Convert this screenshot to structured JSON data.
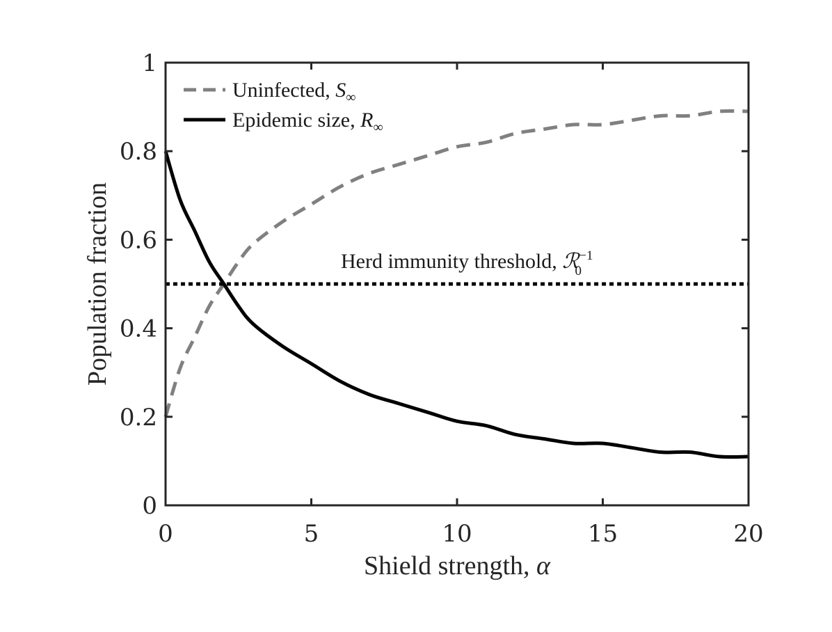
{
  "chart_data": {
    "type": "line",
    "xlabel": "Shield strength, ",
    "xlabel_symbol": "α",
    "ylabel": "Population fraction",
    "xlim": [
      0,
      20
    ],
    "ylim": [
      0,
      1
    ],
    "xticks": [
      "0",
      "5",
      "10",
      "15",
      "20"
    ],
    "xtick_values": [
      0,
      5,
      10,
      15,
      20
    ],
    "yticks": [
      "0",
      "0.2",
      "0.4",
      "0.6",
      "0.8",
      "1"
    ],
    "ytick_values": [
      0,
      0.2,
      0.4,
      0.6,
      0.8,
      1
    ],
    "grid": false,
    "legend_position": "top-left",
    "series": [
      {
        "name": "Uninfected, ",
        "name_symbol": "S",
        "name_subscript": "∞",
        "color": "#808080",
        "style": "dashed",
        "x": [
          0,
          0.5,
          1,
          1.5,
          2,
          2.5,
          3,
          4,
          5,
          6,
          7,
          8,
          9,
          10,
          11,
          12,
          13,
          14,
          15,
          16,
          17,
          18,
          19,
          20
        ],
        "values": [
          0.2,
          0.31,
          0.38,
          0.45,
          0.5,
          0.55,
          0.59,
          0.64,
          0.68,
          0.72,
          0.75,
          0.77,
          0.79,
          0.81,
          0.82,
          0.84,
          0.85,
          0.86,
          0.86,
          0.87,
          0.88,
          0.88,
          0.89,
          0.89
        ]
      },
      {
        "name": "Epidemic size, ",
        "name_symbol": "R",
        "name_subscript": "∞",
        "color": "#000000",
        "style": "solid",
        "x": [
          0,
          0.5,
          1,
          1.5,
          2,
          2.5,
          3,
          4,
          5,
          6,
          7,
          8,
          9,
          10,
          11,
          12,
          13,
          14,
          15,
          16,
          17,
          18,
          19,
          20
        ],
        "values": [
          0.8,
          0.69,
          0.62,
          0.55,
          0.5,
          0.45,
          0.41,
          0.36,
          0.32,
          0.28,
          0.25,
          0.23,
          0.21,
          0.19,
          0.18,
          0.16,
          0.15,
          0.14,
          0.14,
          0.13,
          0.12,
          0.12,
          0.11,
          0.11
        ]
      },
      {
        "name": "Herd immunity threshold",
        "color": "#000000",
        "style": "dotted",
        "x": [
          0,
          20
        ],
        "values": [
          0.5,
          0.5
        ]
      }
    ],
    "annotations": [
      {
        "text": "Herd immunity threshold, ",
        "symbol": "ℛ",
        "subscript": "0",
        "superscript": "−1",
        "x": 6,
        "y": 0.5
      }
    ]
  }
}
